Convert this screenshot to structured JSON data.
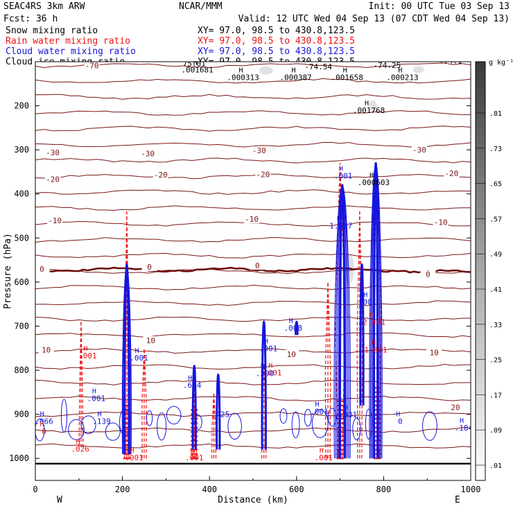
{
  "header": {
    "model": "SEAC4RS  3km ARW",
    "center": "NCAR/MMM",
    "init": "Init: 00 UTC Tue 03 Sep 13",
    "fcst": "Fcst:   36 h",
    "valid": "Valid: 12 UTC Wed 04 Sep 13 (07 CDT Wed 04 Sep 13)"
  },
  "colors": {
    "snow": "#000000",
    "rain": "#ee1111",
    "cloud_water": "#1515dd",
    "cloud_ice": "#000000",
    "temperature": "#7a1414",
    "freezing": "#6e0b0b"
  },
  "chart_data": {
    "type": "contour-cross-section",
    "xlabel": "Distance (km)",
    "ylabel": "Pressure (hPa)",
    "xlim": [
      0,
      1000
    ],
    "ylim": [
      1050,
      100
    ],
    "x_ticks": [
      "0",
      "200",
      "400",
      "600",
      "800",
      "1000"
    ],
    "y_ticks": [
      "200",
      "300",
      "400",
      "500",
      "600",
      "700",
      "800",
      "900",
      "1000"
    ],
    "x_end_labels": {
      "left": "W",
      "right": "E"
    },
    "fields": [
      {
        "name": "Snow mixing ratio",
        "xy": "XY=  97.0, 98.5 to 430.8,123.5",
        "color": "#000000"
      },
      {
        "name": "Rain water mixing ratio",
        "xy": "XY=  97.0, 98.5 to 430.8,123.5",
        "color": "#ee1111"
      },
      {
        "name": "Cloud water mixing ratio",
        "xy": "XY=  97.0, 98.5 to 430.8,123.5",
        "color": "#1515dd"
      },
      {
        "name": "Cloud ice mixing ratio",
        "xy": "XY=  97.0, 98.5 to 430.8,123.5",
        "color": "#000000"
      }
    ],
    "temperature_isotherms": [
      {
        "label": "-70",
        "p": 108
      },
      {
        "label": "-30",
        "p": 300
      },
      {
        "label": "-20",
        "p": 355
      },
      {
        "label": "-10",
        "p": 462
      },
      {
        "label": "0",
        "p": 572
      },
      {
        "label": "10",
        "p": 775
      },
      {
        "label": "20",
        "p": 890
      }
    ],
    "isotherm_labels": [
      {
        "text": "-70",
        "x": 130,
        "p": 110
      },
      {
        "text": "-30",
        "x": 40,
        "p": 308
      },
      {
        "text": "-30",
        "x": 258,
        "p": 310
      },
      {
        "text": "-30",
        "x": 514,
        "p": 303
      },
      {
        "text": "-30",
        "x": 882,
        "p": 301
      },
      {
        "text": "-20",
        "x": 40,
        "p": 368
      },
      {
        "text": "-20",
        "x": 288,
        "p": 358
      },
      {
        "text": "-20",
        "x": 523,
        "p": 357
      },
      {
        "text": "-20",
        "x": 956,
        "p": 355
      },
      {
        "text": "-10",
        "x": 45,
        "p": 462
      },
      {
        "text": "-10",
        "x": 497,
        "p": 459
      },
      {
        "text": "-10",
        "x": 931,
        "p": 466
      },
      {
        "text": "0",
        "x": 15,
        "p": 572
      },
      {
        "text": "0",
        "x": 262,
        "p": 567
      },
      {
        "text": "0",
        "x": 510,
        "p": 564
      },
      {
        "text": "0",
        "x": 902,
        "p": 584
      },
      {
        "text": "10",
        "x": 25,
        "p": 755
      },
      {
        "text": "10",
        "x": 265,
        "p": 734
      },
      {
        "text": "10",
        "x": 588,
        "p": 765
      },
      {
        "text": "10",
        "x": 916,
        "p": 761
      },
      {
        "text": "20",
        "x": 965,
        "p": 886
      }
    ],
    "top_values": [
      {
        "text": "75.01",
        "x": 365,
        "p": 110
      },
      {
        "text": "-74.54",
        "x": 650,
        "p": 117
      },
      {
        "text": "-74.25",
        "x": 808,
        "p": 114
      },
      {
        "text": "+74.1",
        "x": 954,
        "p": 104
      }
    ],
    "max_labels": [
      {
        "text": ".001681",
        "x": 372,
        "p": 124,
        "color": "#000000"
      },
      {
        "text": ".000313",
        "x": 477,
        "p": 142,
        "color": "#000000"
      },
      {
        "text": ".000387",
        "x": 598,
        "p": 142,
        "color": "#000000"
      },
      {
        "text": ".001658",
        "x": 716,
        "p": 142,
        "color": "#000000"
      },
      {
        "text": ".000213",
        "x": 843,
        "p": 142,
        "color": "#000000"
      },
      {
        "text": ".001768",
        "x": 766,
        "p": 216,
        "color": "#000000"
      },
      {
        "text": ".000603",
        "x": 777,
        "p": 380,
        "color": "#000000"
      },
      {
        "text": ".001",
        "x": 707,
        "p": 365,
        "color": "#1515dd"
      },
      {
        "text": "1.587",
        "x": 702,
        "p": 478,
        "color": "#1515dd"
      },
      {
        "text": ".001",
        "x": 763,
        "p": 651,
        "color": "#1515dd"
      },
      {
        "text": ".008",
        "x": 592,
        "p": 710,
        "color": "#1515dd"
      },
      {
        "text": ".001",
        "x": 535,
        "p": 757,
        "color": "#1515dd"
      },
      {
        "text": ".290",
        "x": 527,
        "p": 813,
        "color": "#1515dd"
      },
      {
        "text": ".664",
        "x": 360,
        "p": 840,
        "color": "#1515dd"
      },
      {
        "text": ".001",
        "x": 140,
        "p": 870,
        "color": "#1515dd"
      },
      {
        "text": ".139",
        "x": 152,
        "p": 922,
        "color": "#1515dd"
      },
      {
        "text": ".066",
        "x": 20,
        "p": 922,
        "color": "#1515dd"
      },
      {
        "text": ".184",
        "x": 984,
        "p": 937,
        "color": "#1515dd"
      },
      {
        "text": ".001",
        "x": 652,
        "p": 900,
        "color": "#1515dd"
      },
      {
        "text": ".001",
        "x": 718,
        "p": 907,
        "color": "#1515dd"
      },
      {
        "text": ".001",
        "x": 238,
        "p": 778,
        "color": "#1515dd"
      },
      {
        "text": ".425",
        "x": 425,
        "p": 906,
        "color": "#1515dd"
      },
      {
        "text": "0",
        "x": 838,
        "p": 922,
        "color": "#1515dd"
      },
      {
        "text": ".001",
        "x": 120,
        "p": 773,
        "color": "#ee1111"
      },
      {
        "text": ".026",
        "x": 103,
        "p": 985,
        "color": "#ee1111"
      },
      {
        "text": ".001",
        "x": 545,
        "p": 812,
        "color": "#ee1111"
      },
      {
        "text": ".001",
        "x": 365,
        "p": 1004,
        "color": "#ee1111"
      },
      {
        "text": ".001",
        "x": 227,
        "p": 1004,
        "color": "#ee1111"
      },
      {
        "text": "1.601",
        "x": 782,
        "p": 760,
        "color": "#ee1111"
      },
      {
        "text": "2.401",
        "x": 778,
        "p": 697,
        "color": "#ee1111"
      },
      {
        "text": ".001",
        "x": 662,
        "p": 1004,
        "color": "#ee1111"
      },
      {
        "text": "0",
        "x": 20,
        "p": 945,
        "color": "#ee1111"
      }
    ],
    "colorbar": {
      "title": "g kg⁻¹",
      "labels": [
        ".81",
        ".73",
        ".65",
        ".57",
        ".49",
        ".41",
        ".33",
        ".25",
        ".17",
        ".09",
        ".01"
      ]
    }
  }
}
